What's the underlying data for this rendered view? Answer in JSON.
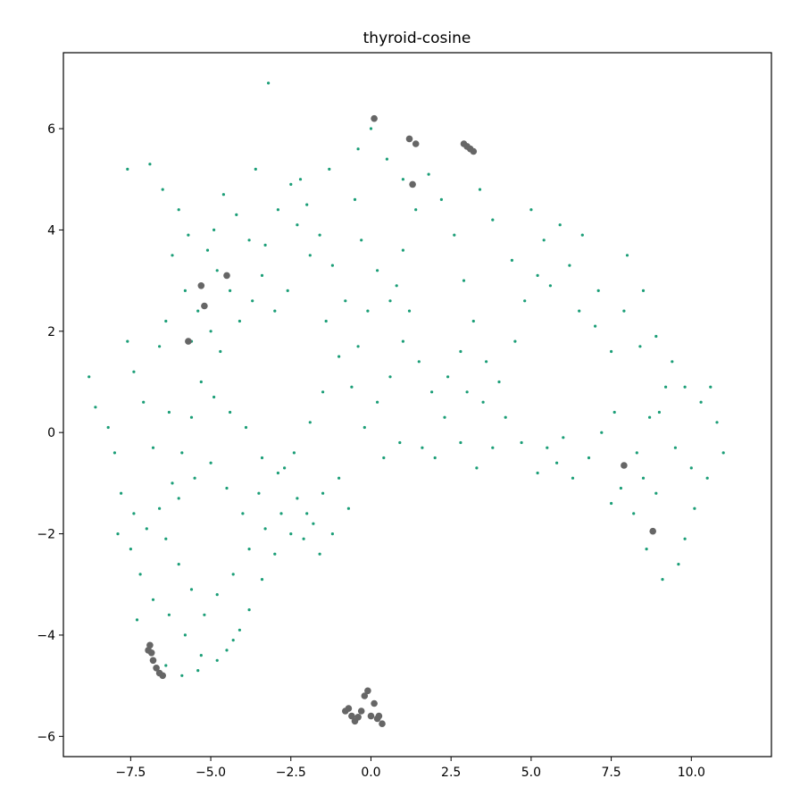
{
  "chart_data": {
    "type": "scatter",
    "title": "thyroid-cosine",
    "xlabel": "",
    "ylabel": "",
    "xlim": [
      -9.6,
      12.5
    ],
    "ylim": [
      -6.4,
      7.5
    ],
    "grid": false,
    "legend": "none",
    "x_ticks": [
      -7.5,
      -5.0,
      -2.5,
      0.0,
      2.5,
      5.0,
      7.5,
      10.0
    ],
    "x_tick_labels": [
      "−7.5",
      "−5.0",
      "−2.5",
      "0.0",
      "2.5",
      "5.0",
      "7.5",
      "10.0"
    ],
    "y_ticks": [
      -6,
      -4,
      -2,
      0,
      2,
      4,
      6
    ],
    "y_tick_labels": [
      "−6",
      "−4",
      "−2",
      "0",
      "2",
      "4",
      "6"
    ],
    "series": [
      {
        "color": "#1b9e77",
        "marker": "small-dot",
        "points": [
          [
            -8.8,
            1.1
          ],
          [
            -8.6,
            0.5
          ],
          [
            -8.2,
            0.1
          ],
          [
            -7.6,
            1.8
          ],
          [
            -7.4,
            1.2
          ],
          [
            -7.1,
            0.6
          ],
          [
            -6.8,
            -0.3
          ],
          [
            -6.3,
            0.4
          ],
          [
            -7.6,
            5.2
          ],
          [
            -6.9,
            5.3
          ],
          [
            -6.5,
            4.8
          ],
          [
            -6.0,
            4.4
          ],
          [
            -5.7,
            3.9
          ],
          [
            -6.2,
            3.5
          ],
          [
            -5.8,
            2.8
          ],
          [
            -6.4,
            2.2
          ],
          [
            -5.4,
            2.4
          ],
          [
            -4.8,
            3.2
          ],
          [
            -4.6,
            4.7
          ],
          [
            -4.2,
            4.3
          ],
          [
            -3.8,
            3.8
          ],
          [
            -3.4,
            3.1
          ],
          [
            -3.0,
            2.4
          ],
          [
            -2.6,
            2.8
          ],
          [
            -2.5,
            4.9
          ],
          [
            -2.0,
            4.5
          ],
          [
            -1.6,
            3.9
          ],
          [
            -1.2,
            3.3
          ],
          [
            -0.8,
            2.6
          ],
          [
            -0.5,
            4.6
          ],
          [
            -0.3,
            3.8
          ],
          [
            0.2,
            3.2
          ],
          [
            0.6,
            2.6
          ],
          [
            1.0,
            3.6
          ],
          [
            1.4,
            4.4
          ],
          [
            1.8,
            5.1
          ],
          [
            2.2,
            4.6
          ],
          [
            2.6,
            3.9
          ],
          [
            2.9,
            3.0
          ],
          [
            3.2,
            2.2
          ],
          [
            3.6,
            1.4
          ],
          [
            3.4,
            4.8
          ],
          [
            3.8,
            4.2
          ],
          [
            4.4,
            3.4
          ],
          [
            5.0,
            4.4
          ],
          [
            5.4,
            3.8
          ],
          [
            5.6,
            2.9
          ],
          [
            6.2,
            3.3
          ],
          [
            6.5,
            2.4
          ],
          [
            7.0,
            2.1
          ],
          [
            7.5,
            1.6
          ],
          [
            8.0,
            3.5
          ],
          [
            8.5,
            2.8
          ],
          [
            8.9,
            1.9
          ],
          [
            9.4,
            1.4
          ],
          [
            9.8,
            0.9
          ],
          [
            10.3,
            0.6
          ],
          [
            10.8,
            0.2
          ],
          [
            11.0,
            -0.4
          ],
          [
            10.5,
            -0.9
          ],
          [
            10.1,
            -1.5
          ],
          [
            9.8,
            -2.1
          ],
          [
            9.6,
            -2.6
          ],
          [
            9.1,
            -2.9
          ],
          [
            8.6,
            -2.3
          ],
          [
            8.2,
            -1.6
          ],
          [
            7.8,
            -1.1
          ],
          [
            8.3,
            -0.4
          ],
          [
            8.7,
            0.3
          ],
          [
            9.2,
            0.9
          ],
          [
            7.6,
            0.4
          ],
          [
            7.2,
            0.0
          ],
          [
            6.8,
            -0.5
          ],
          [
            6.3,
            -0.9
          ],
          [
            5.8,
            -0.6
          ],
          [
            5.2,
            -0.8
          ],
          [
            4.7,
            -0.2
          ],
          [
            4.2,
            0.3
          ],
          [
            3.8,
            -0.3
          ],
          [
            3.3,
            -0.7
          ],
          [
            2.8,
            -0.2
          ],
          [
            2.3,
            0.3
          ],
          [
            1.9,
            0.8
          ],
          [
            1.5,
            1.4
          ],
          [
            1.0,
            1.8
          ],
          [
            0.6,
            1.1
          ],
          [
            0.2,
            0.6
          ],
          [
            -0.2,
            0.1
          ],
          [
            -0.6,
            0.9
          ],
          [
            -1.0,
            1.5
          ],
          [
            -1.5,
            0.8
          ],
          [
            -1.9,
            0.2
          ],
          [
            -2.4,
            -0.4
          ],
          [
            -2.9,
            -0.8
          ],
          [
            -3.4,
            -0.5
          ],
          [
            -3.9,
            0.1
          ],
          [
            -4.4,
            0.4
          ],
          [
            -4.9,
            0.7
          ],
          [
            -5.3,
            1.0
          ],
          [
            -5.6,
            0.3
          ],
          [
            -5.9,
            -0.4
          ],
          [
            -6.2,
            -1.0
          ],
          [
            -6.6,
            -1.5
          ],
          [
            -7.0,
            -1.9
          ],
          [
            -7.4,
            -1.6
          ],
          [
            -7.8,
            -1.2
          ],
          [
            -7.5,
            -2.3
          ],
          [
            -7.2,
            -2.8
          ],
          [
            -6.8,
            -3.3
          ],
          [
            -6.3,
            -3.6
          ],
          [
            -5.8,
            -4.0
          ],
          [
            -5.3,
            -4.4
          ],
          [
            -4.8,
            -4.5
          ],
          [
            -4.3,
            -4.1
          ],
          [
            -3.8,
            -3.5
          ],
          [
            -3.4,
            -2.9
          ],
          [
            -3.0,
            -2.4
          ],
          [
            -2.5,
            -2.0
          ],
          [
            -2.0,
            -1.6
          ],
          [
            -1.5,
            -1.2
          ],
          [
            -1.0,
            -0.9
          ],
          [
            -0.7,
            -1.5
          ],
          [
            -1.2,
            -2.0
          ],
          [
            -1.8,
            -1.8
          ],
          [
            -2.3,
            -1.3
          ],
          [
            -2.8,
            -1.6
          ],
          [
            -3.3,
            -1.9
          ],
          [
            -3.8,
            -2.3
          ],
          [
            -4.3,
            -2.8
          ],
          [
            -4.8,
            -3.2
          ],
          [
            -5.2,
            -3.6
          ],
          [
            -5.6,
            -3.1
          ],
          [
            -6.0,
            -2.6
          ],
          [
            -6.4,
            -2.1
          ],
          [
            -6.0,
            -1.3
          ],
          [
            -5.5,
            -0.9
          ],
          [
            -5.0,
            -0.6
          ],
          [
            -4.5,
            -1.1
          ],
          [
            -4.0,
            -1.6
          ],
          [
            -3.5,
            -1.2
          ],
          [
            -0.4,
            5.6
          ],
          [
            0.0,
            6.0
          ],
          [
            0.5,
            5.4
          ],
          [
            1.0,
            5.0
          ],
          [
            -1.3,
            5.2
          ],
          [
            -2.2,
            5.0
          ],
          [
            -3.2,
            6.9
          ],
          [
            -3.6,
            5.2
          ],
          [
            -4.9,
            4.0
          ],
          [
            -5.1,
            3.6
          ],
          [
            -5.6,
            1.8
          ],
          [
            -6.6,
            1.7
          ],
          [
            -8.0,
            -0.4
          ],
          [
            -7.9,
            -2.0
          ],
          [
            -7.3,
            -3.7
          ],
          [
            -6.9,
            -4.2
          ],
          [
            -6.4,
            -4.6
          ],
          [
            -5.9,
            -4.8
          ],
          [
            -5.4,
            -4.7
          ],
          [
            -4.5,
            -4.3
          ],
          [
            -4.1,
            -3.9
          ],
          [
            -2.7,
            -0.7
          ],
          [
            -2.1,
            -2.1
          ],
          [
            -1.6,
            -2.4
          ],
          [
            0.4,
            -0.5
          ],
          [
            0.9,
            -0.2
          ],
          [
            1.6,
            -0.3
          ],
          [
            2.0,
            -0.5
          ],
          [
            2.4,
            1.1
          ],
          [
            2.8,
            1.6
          ],
          [
            3.0,
            0.8
          ],
          [
            3.5,
            0.6
          ],
          [
            4.0,
            1.0
          ],
          [
            4.5,
            1.8
          ],
          [
            4.8,
            2.6
          ],
          [
            5.2,
            3.1
          ],
          [
            5.9,
            4.1
          ],
          [
            6.6,
            3.9
          ],
          [
            7.1,
            2.8
          ],
          [
            7.9,
            2.4
          ],
          [
            8.4,
            1.7
          ],
          [
            9.0,
            0.4
          ],
          [
            9.5,
            -0.3
          ],
          [
            10.0,
            -0.7
          ],
          [
            10.6,
            0.9
          ],
          [
            8.9,
            -1.2
          ],
          [
            8.5,
            -0.9
          ],
          [
            7.5,
            -1.4
          ],
          [
            6.0,
            -0.1
          ],
          [
            5.5,
            -0.3
          ],
          [
            1.2,
            2.4
          ],
          [
            0.8,
            2.9
          ],
          [
            -0.1,
            2.4
          ],
          [
            -0.4,
            1.7
          ],
          [
            -1.4,
            2.2
          ],
          [
            -1.9,
            3.5
          ],
          [
            -2.3,
            4.1
          ],
          [
            -2.9,
            4.4
          ],
          [
            -3.3,
            3.7
          ],
          [
            -3.7,
            2.6
          ],
          [
            -4.1,
            2.2
          ],
          [
            -4.4,
            2.8
          ],
          [
            -4.7,
            1.6
          ],
          [
            -5.0,
            2.0
          ]
        ]
      },
      {
        "color": "#666666",
        "marker": "large-dot",
        "points": [
          [
            0.1,
            6.2
          ],
          [
            1.2,
            5.8
          ],
          [
            1.4,
            5.7
          ],
          [
            2.9,
            5.7
          ],
          [
            3.0,
            5.65
          ],
          [
            3.1,
            5.6
          ],
          [
            3.2,
            5.55
          ],
          [
            1.3,
            4.9
          ],
          [
            -5.3,
            2.9
          ],
          [
            -5.2,
            2.5
          ],
          [
            -4.5,
            3.1
          ],
          [
            -5.7,
            1.8
          ],
          [
            7.9,
            -0.65
          ],
          [
            8.8,
            -1.95
          ],
          [
            -6.9,
            -4.2
          ],
          [
            -6.85,
            -4.35
          ],
          [
            -6.8,
            -4.5
          ],
          [
            -6.7,
            -4.65
          ],
          [
            -6.6,
            -4.75
          ],
          [
            -6.5,
            -4.8
          ],
          [
            -6.95,
            -4.3
          ],
          [
            -0.8,
            -5.5
          ],
          [
            -0.6,
            -5.6
          ],
          [
            -0.5,
            -5.7
          ],
          [
            -0.3,
            -5.5
          ],
          [
            -0.2,
            -5.2
          ],
          [
            -0.1,
            -5.1
          ],
          [
            0.0,
            -5.6
          ],
          [
            0.1,
            -5.35
          ],
          [
            0.2,
            -5.65
          ],
          [
            0.35,
            -5.75
          ],
          [
            -0.7,
            -5.45
          ],
          [
            -0.4,
            -5.62
          ],
          [
            0.25,
            -5.6
          ]
        ]
      }
    ]
  }
}
